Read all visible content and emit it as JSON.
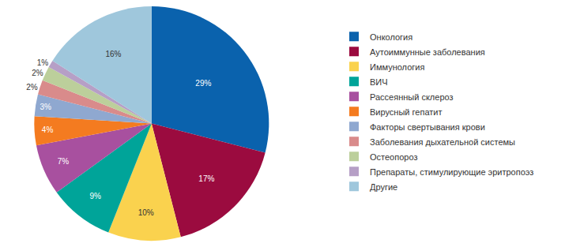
{
  "chart_data": {
    "type": "pie",
    "categories": [
      "Онкология",
      "Аутоиммунные заболевания",
      "Иммунология",
      "ВИЧ",
      "Рассеянный склероз",
      "Вирусный гепатит",
      "Факторы свертывания крови",
      "Заболевания дыхательной системы",
      "Остеопороз",
      "Препараты, стимулирующие эритропоэз",
      "Другие"
    ],
    "values": [
      29,
      17,
      10,
      9,
      7,
      4,
      3,
      2,
      2,
      1,
      16
    ],
    "value_labels": [
      "29%",
      "17%",
      "10%",
      "9%",
      "7%",
      "4%",
      "3%",
      "2%",
      "2%",
      "1%",
      "16%"
    ],
    "colors": [
      "#0a62ad",
      "#9b0b3f",
      "#fad24e",
      "#00a499",
      "#a8509f",
      "#f47b20",
      "#8fa8d0",
      "#d98b8b",
      "#bccf9b",
      "#b69fc6",
      "#9fc7dc"
    ],
    "data_labels": true,
    "legend": "right"
  }
}
